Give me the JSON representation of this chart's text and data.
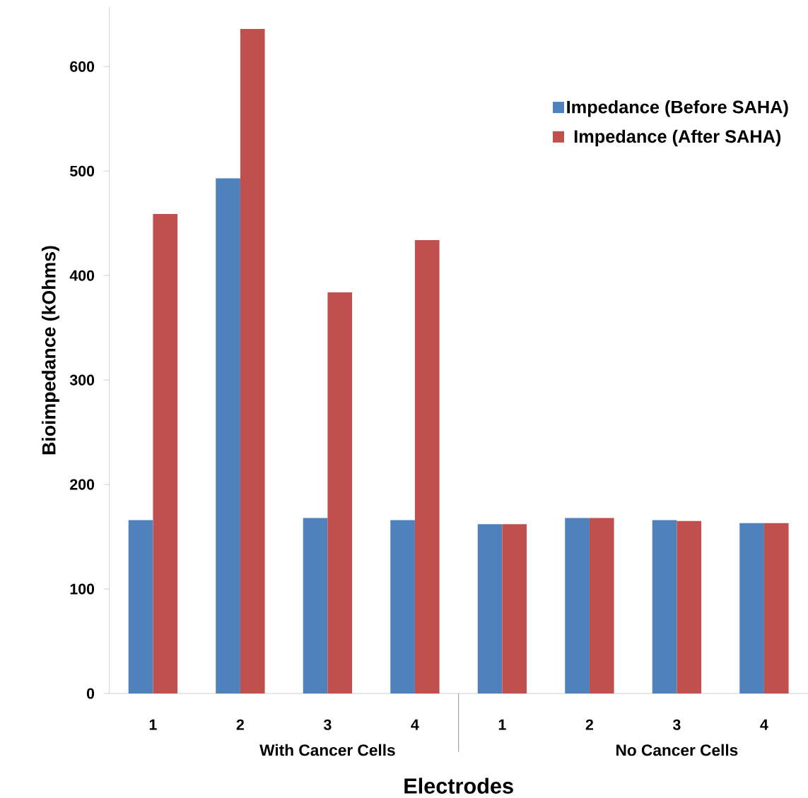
{
  "chart_data": {
    "type": "bar",
    "xlabel": "Electrodes",
    "ylabel": "Bioimpedance (kOhms)",
    "categories": [
      "1",
      "2",
      "3",
      "4",
      "1",
      "2",
      "3",
      "4"
    ],
    "series": [
      {
        "name": "Impedance (Before SAHA)",
        "color": "#4f81bd",
        "values": [
          166,
          493,
          168,
          166,
          162,
          168,
          166,
          163
        ]
      },
      {
        "name": "Impedance (After SAHA)",
        "color": "#c0504d",
        "values": [
          459,
          636,
          384,
          434,
          162,
          168,
          165,
          163
        ]
      }
    ],
    "ylim": [
      0,
      657
    ],
    "yticks": [
      0,
      100,
      200,
      300,
      400,
      500,
      600
    ],
    "annotations": [
      "With Cancer Cells",
      "No Cancer Cells"
    ],
    "legend": "top right",
    "grid": false
  }
}
